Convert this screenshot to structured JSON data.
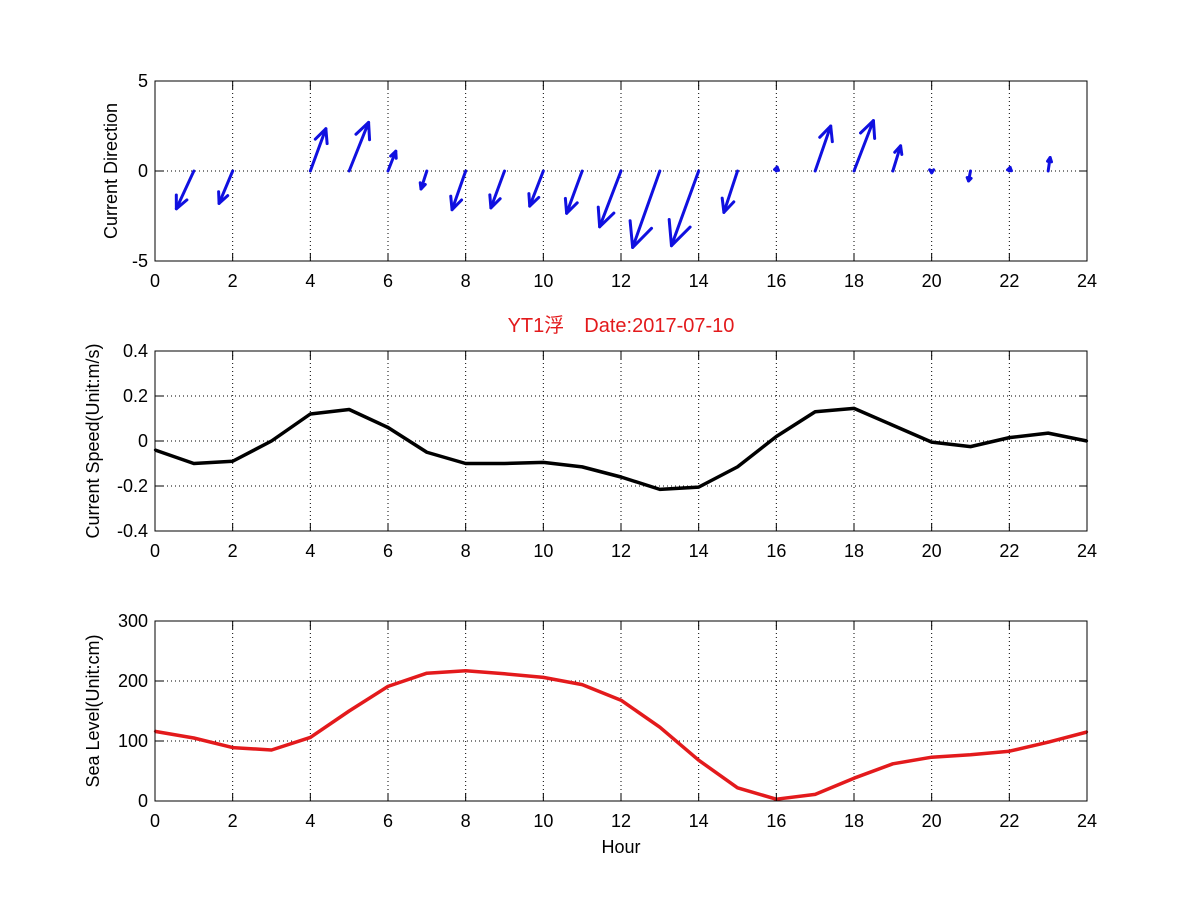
{
  "figure": {
    "title": "YT1浮　Date:2017-07-10",
    "title_color": "#e31a1c"
  },
  "chart_data": [
    {
      "id": "direction",
      "type": "quiver",
      "ylabel": "Current Direction",
      "xlabel": "",
      "xlim": [
        0,
        24
      ],
      "ylim": [
        -5,
        5
      ],
      "xticks": [
        0,
        2,
        4,
        6,
        8,
        10,
        12,
        14,
        16,
        18,
        20,
        22,
        24
      ],
      "yticks": [
        -5,
        0,
        5
      ],
      "grid": true,
      "color": "#1010e0",
      "vectors": [
        {
          "x": 1,
          "u": -0.45,
          "v": -2.1
        },
        {
          "x": 2,
          "u": -0.35,
          "v": -1.8
        },
        {
          "x": 4,
          "u": 0.4,
          "v": 2.35
        },
        {
          "x": 5,
          "u": 0.5,
          "v": 2.7
        },
        {
          "x": 6,
          "u": 0.2,
          "v": 1.1
        },
        {
          "x": 7,
          "u": -0.15,
          "v": -1.0
        },
        {
          "x": 8,
          "u": -0.35,
          "v": -2.15
        },
        {
          "x": 9,
          "u": -0.35,
          "v": -2.05
        },
        {
          "x": 10,
          "u": -0.35,
          "v": -1.95
        },
        {
          "x": 11,
          "u": -0.4,
          "v": -2.35
        },
        {
          "x": 12,
          "u": -0.55,
          "v": -3.1
        },
        {
          "x": 13,
          "u": -0.7,
          "v": -4.25
        },
        {
          "x": 14,
          "u": -0.7,
          "v": -4.15
        },
        {
          "x": 15,
          "u": -0.35,
          "v": -2.3
        },
        {
          "x": 16,
          "u": 0.02,
          "v": 0.22
        },
        {
          "x": 17,
          "u": 0.4,
          "v": 2.5
        },
        {
          "x": 18,
          "u": 0.5,
          "v": 2.8
        },
        {
          "x": 19,
          "u": 0.2,
          "v": 1.4
        },
        {
          "x": 20,
          "u": 0.0,
          "v": -0.1
        },
        {
          "x": 21,
          "u": -0.05,
          "v": -0.55
        },
        {
          "x": 22,
          "u": 0.02,
          "v": 0.2
        },
        {
          "x": 23,
          "u": 0.05,
          "v": 0.75
        }
      ]
    },
    {
      "id": "speed",
      "type": "line",
      "ylabel": "Current Speed(Unit:m/s)",
      "xlabel": "",
      "xlim": [
        0,
        24
      ],
      "ylim": [
        -0.4,
        0.4
      ],
      "xticks": [
        0,
        2,
        4,
        6,
        8,
        10,
        12,
        14,
        16,
        18,
        20,
        22,
        24
      ],
      "yticks": [
        -0.4,
        -0.2,
        0,
        0.2,
        0.4
      ],
      "ytick_labels": [
        "-0.4",
        "-0.2",
        "0",
        "0.2",
        "0.4"
      ],
      "grid": true,
      "color": "#000000",
      "series": [
        {
          "x": [
            0,
            1,
            2,
            3,
            4,
            5,
            6,
            7,
            8,
            9,
            10,
            11,
            12,
            13,
            14,
            15,
            16,
            17,
            18,
            19,
            20,
            21,
            22,
            23,
            24
          ],
          "values": [
            -0.04,
            -0.1,
            -0.09,
            0.0,
            0.12,
            0.14,
            0.06,
            -0.05,
            -0.1,
            -0.1,
            -0.095,
            -0.115,
            -0.16,
            -0.215,
            -0.205,
            -0.115,
            0.02,
            0.13,
            0.145,
            0.07,
            -0.005,
            -0.025,
            0.015,
            0.035,
            0.0
          ]
        }
      ]
    },
    {
      "id": "sealevel",
      "type": "line",
      "ylabel": "Sea Level(Unit:cm)",
      "xlabel": "Hour",
      "xlim": [
        0,
        24
      ],
      "ylim": [
        0,
        300
      ],
      "xticks": [
        0,
        2,
        4,
        6,
        8,
        10,
        12,
        14,
        16,
        18,
        20,
        22,
        24
      ],
      "yticks": [
        0,
        100,
        200,
        300
      ],
      "grid": true,
      "color": "#e31a1c",
      "series": [
        {
          "x": [
            0,
            1,
            2,
            3,
            4,
            5,
            6,
            7,
            8,
            9,
            10,
            11,
            12,
            13,
            14,
            15,
            16,
            17,
            18,
            19,
            20,
            21,
            22,
            23,
            24
          ],
          "values": [
            116,
            105,
            89,
            85,
            106,
            150,
            191,
            213,
            217,
            212,
            206,
            194,
            168,
            123,
            68,
            22,
            3,
            11,
            38,
            62,
            73,
            77,
            83,
            98,
            115
          ]
        }
      ]
    }
  ]
}
